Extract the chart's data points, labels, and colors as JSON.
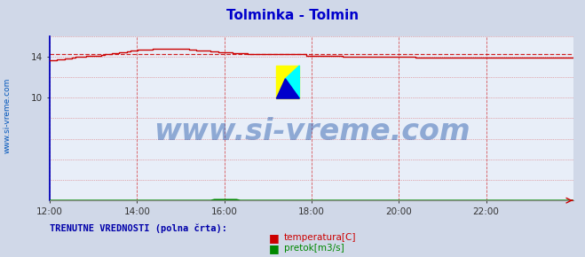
{
  "title": "Tolminka - Tolmin",
  "title_color": "#0000cc",
  "bg_color": "#d0d8e8",
  "plot_bg_color": "#e8eef8",
  "grid_color_v": "#cc0000",
  "grid_color_h": "#cc0000",
  "xmin": 0,
  "xmax": 144,
  "ymin": 0,
  "ymax": 16,
  "ytick_vals": [
    10,
    14
  ],
  "xtick_positions": [
    0,
    24,
    48,
    72,
    96,
    120
  ],
  "xtick_labels": [
    "12:00",
    "14:00",
    "16:00",
    "18:00",
    "20:00",
    "22:00"
  ],
  "temp_color": "#cc0000",
  "flow_color": "#008800",
  "avg_line_color": "#cc0000",
  "avg_line_value": 14.22,
  "watermark_text": "www.si-vreme.com",
  "watermark_color": "#2255aa",
  "watermark_fontsize": 24,
  "sidebar_text": "www.si-vreme.com",
  "sidebar_color": "#0055bb",
  "legend_label1": "temperatura[C]",
  "legend_label2": "pretok[m3/s]",
  "legend_color1": "#cc0000",
  "legend_color2": "#008800",
  "footer_text": "TRENUTNE VREDNOSTI (polna črta):",
  "footer_color": "#0000aa",
  "temp_data": [
    13.6,
    13.65,
    13.7,
    13.75,
    13.8,
    13.85,
    13.9,
    13.95,
    14.0,
    14.0,
    14.05,
    14.05,
    14.1,
    14.1,
    14.15,
    14.2,
    14.2,
    14.3,
    14.35,
    14.4,
    14.45,
    14.5,
    14.55,
    14.6,
    14.65,
    14.65,
    14.7,
    14.7,
    14.72,
    14.72,
    14.72,
    14.72,
    14.72,
    14.72,
    14.72,
    14.72,
    14.72,
    14.72,
    14.65,
    14.65,
    14.6,
    14.6,
    14.55,
    14.55,
    14.5,
    14.5,
    14.45,
    14.45,
    14.4,
    14.4,
    14.35,
    14.35,
    14.3,
    14.3,
    14.25,
    14.22,
    14.22,
    14.22,
    14.22,
    14.22,
    14.22,
    14.22,
    14.22,
    14.22,
    14.22,
    14.22,
    14.22,
    14.22,
    14.22,
    14.22,
    14.1,
    14.1,
    14.1,
    14.05,
    14.05,
    14.05,
    14.05,
    14.05,
    14.05,
    14.05,
    14.0,
    14.0,
    13.95,
    13.95,
    13.95,
    13.95,
    13.95,
    13.95,
    13.95,
    13.95,
    13.95,
    13.95,
    13.95,
    13.95,
    13.95,
    13.95,
    13.95,
    13.95,
    13.95,
    13.95,
    13.9,
    13.9,
    13.9,
    13.9,
    13.9,
    13.9,
    13.9,
    13.9,
    13.9,
    13.9,
    13.9,
    13.9,
    13.9,
    13.9,
    13.9,
    13.9,
    13.9,
    13.9,
    13.9,
    13.9,
    13.9,
    13.9,
    13.9,
    13.9,
    13.9,
    13.9,
    13.9,
    13.9,
    13.9,
    13.9,
    13.9,
    13.9,
    13.9,
    13.9,
    13.9,
    13.9,
    13.9,
    13.9,
    13.9,
    13.9,
    13.9,
    13.9,
    13.9,
    13.9
  ],
  "flow_bump_start": 45,
  "flow_bump_end": 52,
  "flow_bump_val": 0.08
}
